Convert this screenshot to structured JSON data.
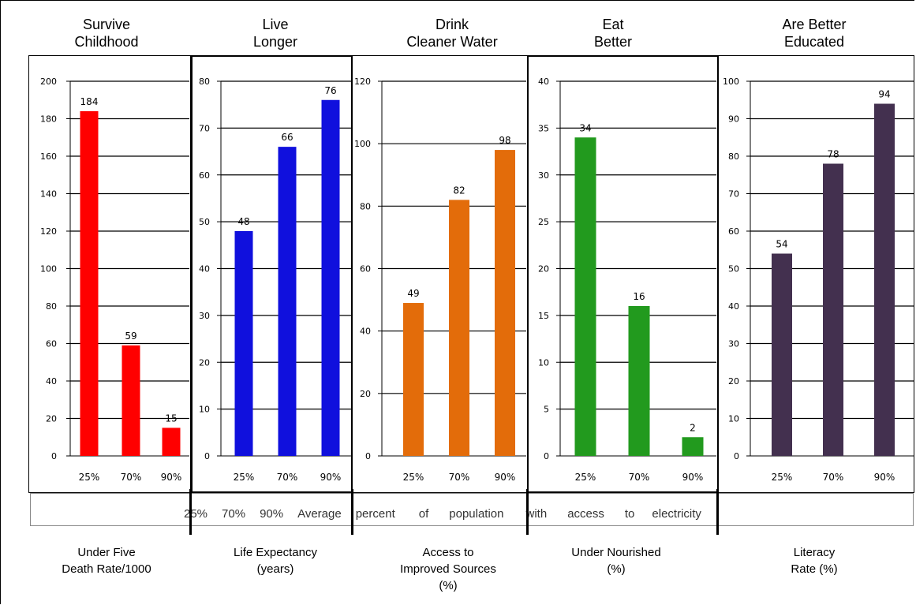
{
  "chart_data": [
    {
      "type": "bar",
      "title": "Survive\nChildhood",
      "xlabel": "Under Five\nDeath Rate/1000",
      "categories": [
        "25%",
        "70%",
        "90%"
      ],
      "values": [
        184,
        59,
        15
      ],
      "ylim": [
        0,
        200
      ],
      "yticks": [
        0,
        20,
        40,
        60,
        80,
        100,
        120,
        140,
        160,
        180,
        200
      ],
      "color": "#ff0000",
      "grid": true
    },
    {
      "type": "bar",
      "title": "Live\nLonger",
      "xlabel": "Life Expectancy\n(years)",
      "categories": [
        "25%",
        "70%",
        "90%"
      ],
      "values": [
        48,
        66,
        76
      ],
      "ylim": [
        0,
        80
      ],
      "yticks": [
        0,
        10,
        20,
        30,
        40,
        50,
        60,
        70,
        80
      ],
      "color": "#1010dd",
      "grid": true
    },
    {
      "type": "bar",
      "title": "Drink\nCleaner Water",
      "xlabel": "Access to\nImproved Sources\n(%)",
      "categories": [
        "25%",
        "70%",
        "90%"
      ],
      "values": [
        49,
        82,
        98
      ],
      "ylim": [
        0,
        120
      ],
      "yticks": [
        0,
        20,
        40,
        60,
        80,
        100,
        120
      ],
      "color": "#e36c0a",
      "grid": true
    },
    {
      "type": "bar",
      "title": "Eat\nBetter",
      "xlabel": "Under Nourished\n(%)",
      "categories": [
        "25%",
        "70%",
        "90%"
      ],
      "values": [
        34,
        16,
        2
      ],
      "ylim": [
        0,
        40
      ],
      "yticks": [
        0,
        5,
        10,
        15,
        20,
        25,
        30,
        35,
        40
      ],
      "color": "#229a1e",
      "grid": true
    },
    {
      "type": "bar",
      "title": "Are Better\nEducated",
      "xlabel": "Literacy\nRate (%)",
      "categories": [
        "25%",
        "70%",
        "90%"
      ],
      "values": [
        54,
        78,
        94
      ],
      "ylim": [
        0,
        100
      ],
      "yticks": [
        0,
        10,
        20,
        30,
        40,
        50,
        60,
        70,
        80,
        90,
        100
      ],
      "color": "#43304f",
      "grid": true
    }
  ],
  "legend": {
    "items": [
      "25%",
      "70%",
      "90%",
      "Average",
      "percent",
      "of",
      "population",
      "with",
      "access",
      "to",
      "electricity"
    ]
  }
}
